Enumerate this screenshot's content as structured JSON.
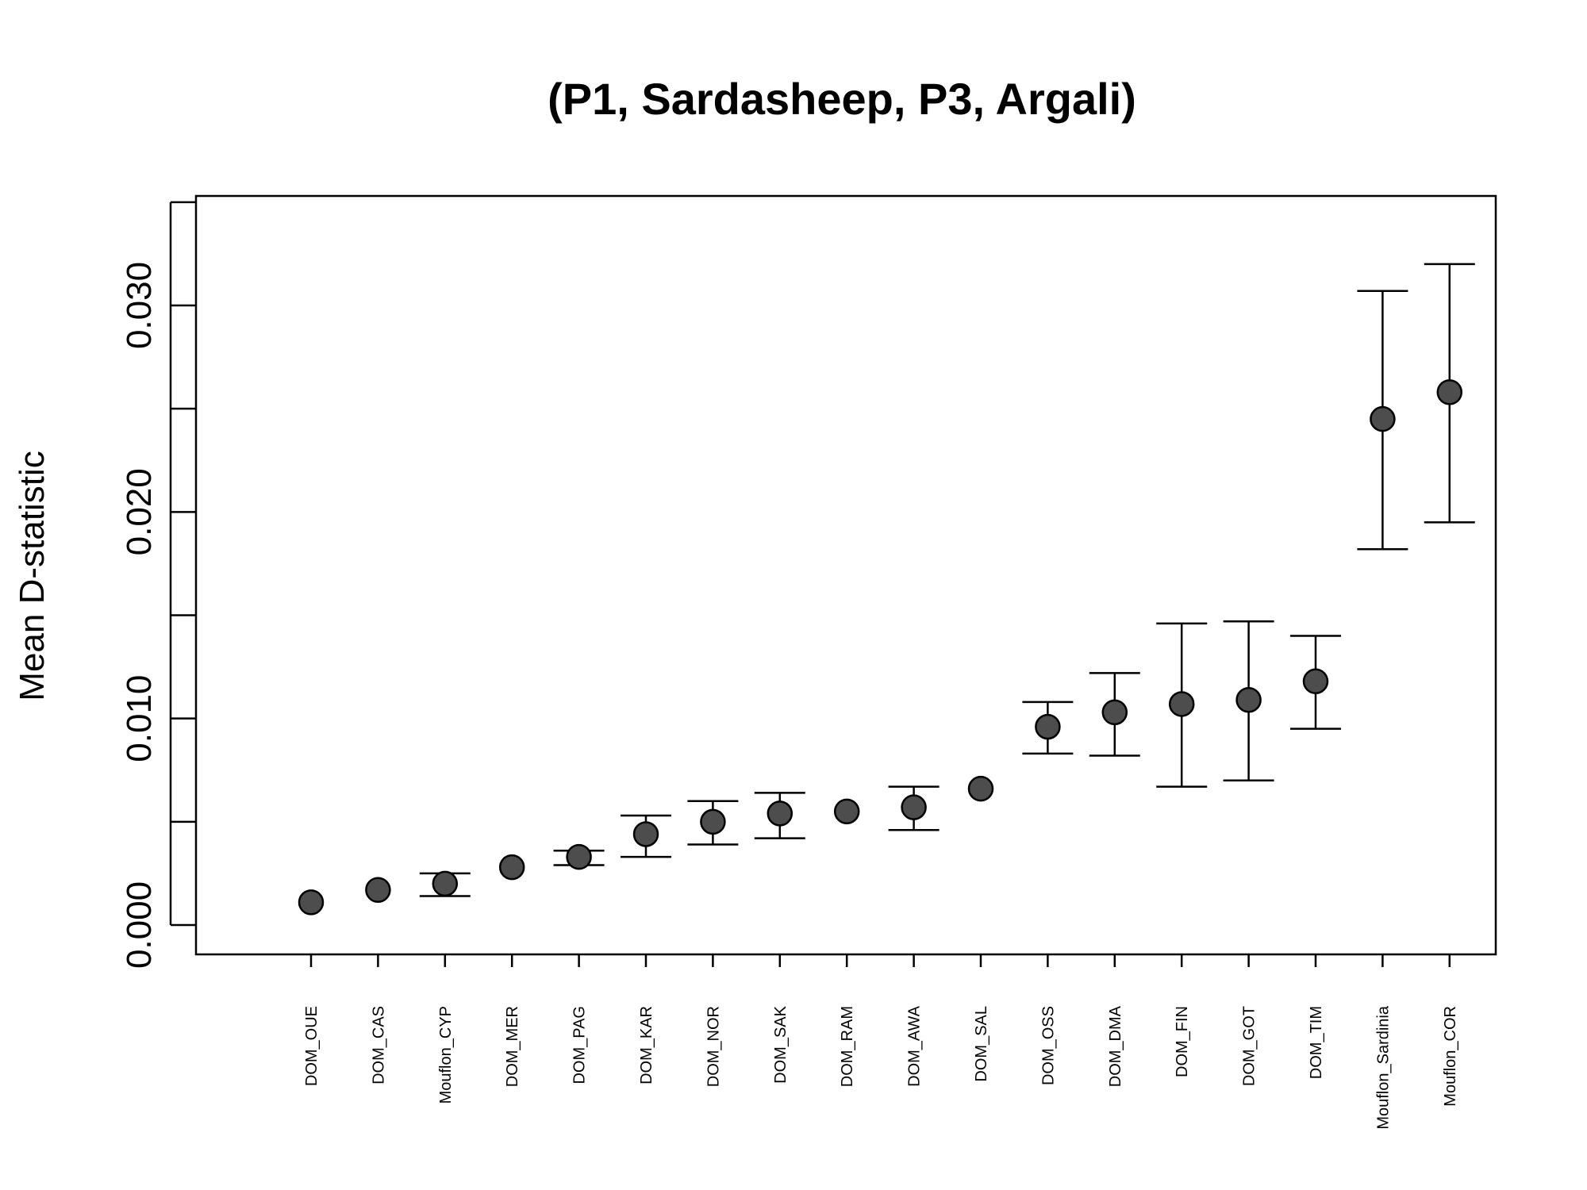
{
  "chart_data": {
    "type": "scatter",
    "title": "(P1, Sardasheep, P3, Argali)",
    "xlabel": "",
    "ylabel": "Mean D-statistic",
    "ylim": [
      -0.0013,
      0.035
    ],
    "yticks": [
      0.0,
      0.005,
      0.01,
      0.015,
      0.02,
      0.025,
      0.03,
      0.035
    ],
    "ytick_labels": [
      "0.000",
      "",
      "0.010",
      "",
      "0.020",
      "",
      "0.030",
      ""
    ],
    "categories": [
      "DOM_OUE",
      "DOM_CAS",
      "Mouflon_CYP",
      "DOM_MER",
      "DOM_PAG",
      "DOM_KAR",
      "DOM_NOR",
      "DOM_SAK",
      "DOM_RAM",
      "DOM_AWA",
      "DOM_SAL",
      "DOM_OSS",
      "DOM_DMA",
      "DOM_FIN",
      "DOM_GOT",
      "DOM_TIM",
      "Mouflon_Sardinia",
      "Mouflon_COR"
    ],
    "values": [
      0.0011,
      0.0017,
      0.002,
      0.0028,
      0.0033,
      0.0044,
      0.005,
      0.0054,
      0.0055,
      0.0057,
      0.0066,
      0.0096,
      0.0103,
      0.0107,
      0.0109,
      0.0118,
      0.0245,
      0.0258
    ],
    "error_low": [
      null,
      null,
      0.0014,
      null,
      0.0029,
      0.0033,
      0.0039,
      0.0042,
      null,
      0.0046,
      null,
      0.0083,
      0.0082,
      0.0067,
      0.007,
      0.0095,
      0.0182,
      0.0195
    ],
    "error_high": [
      null,
      null,
      0.0025,
      null,
      0.0036,
      0.0053,
      0.006,
      0.0064,
      null,
      0.0067,
      null,
      0.0108,
      0.0122,
      0.0146,
      0.0147,
      0.014,
      0.0307,
      0.032
    ],
    "grid": false,
    "legend": "none",
    "colors": {
      "marker_fill": "#4d4d4d",
      "stroke": "#000000"
    }
  }
}
